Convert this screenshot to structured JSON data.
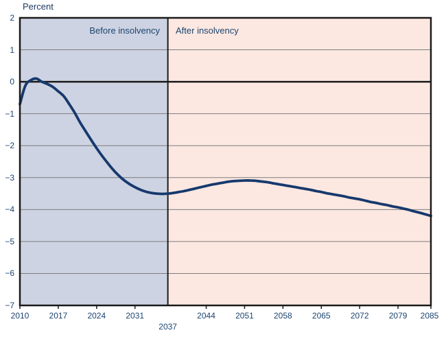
{
  "chart_data": {
    "type": "line",
    "title": "",
    "ylabel": "Percent",
    "xlabel": "",
    "xlim": [
      2010,
      2085
    ],
    "ylim": [
      -7,
      2
    ],
    "grid": true,
    "grid_color": "#7d7d7d",
    "axis_color": "#1a1a1a",
    "text_color": "#1b4470",
    "regions": [
      {
        "label": "Before insolvency",
        "from": 2010,
        "to": 2037,
        "color": "#cdd3e2"
      },
      {
        "label": "After insolvency",
        "from": 2037,
        "to": 2085,
        "color": "#fce8e1"
      }
    ],
    "divider": {
      "year": 2037,
      "label": "2037"
    },
    "x_ticks": [
      {
        "label": "2010",
        "year": 2010
      },
      {
        "label": "2017",
        "year": 2017
      },
      {
        "label": "2024",
        "year": 2024
      },
      {
        "label": "2031",
        "year": 2031
      },
      {
        "label": "2044",
        "year": 2044
      },
      {
        "label": "2051",
        "year": 2051
      },
      {
        "label": "2058",
        "year": 2058
      },
      {
        "label": "2065",
        "year": 2065
      },
      {
        "label": "2072",
        "year": 2072
      },
      {
        "label": "2079",
        "year": 2079
      },
      {
        "label": "2085",
        "year": 2085
      }
    ],
    "y_ticks": [
      {
        "label": "2",
        "value": 2
      },
      {
        "label": "1",
        "value": 1
      },
      {
        "label": "0",
        "value": 0
      },
      {
        "label": "−1",
        "value": -1
      },
      {
        "label": "−2",
        "value": -2
      },
      {
        "label": "−3",
        "value": -3
      },
      {
        "label": "−4",
        "value": -4
      },
      {
        "label": "−5",
        "value": -5
      },
      {
        "label": "−6",
        "value": -6
      },
      {
        "label": "−7",
        "value": -7
      }
    ],
    "series": [
      {
        "color": "#16396d",
        "x_start": 2010,
        "x_step": 1,
        "values": [
          -0.7,
          -0.12,
          0.05,
          0.1,
          0.0,
          -0.07,
          -0.16,
          -0.3,
          -0.45,
          -0.7,
          -0.97,
          -1.28,
          -1.55,
          -1.82,
          -2.08,
          -2.32,
          -2.54,
          -2.75,
          -2.93,
          -3.08,
          -3.2,
          -3.3,
          -3.38,
          -3.44,
          -3.48,
          -3.5,
          -3.51,
          -3.5,
          -3.48,
          -3.45,
          -3.42,
          -3.38,
          -3.34,
          -3.3,
          -3.26,
          -3.22,
          -3.19,
          -3.16,
          -3.13,
          -3.11,
          -3.1,
          -3.09,
          -3.09,
          -3.1,
          -3.12,
          -3.14,
          -3.17,
          -3.2,
          -3.23,
          -3.26,
          -3.29,
          -3.32,
          -3.35,
          -3.38,
          -3.42,
          -3.45,
          -3.49,
          -3.52,
          -3.55,
          -3.58,
          -3.62,
          -3.65,
          -3.68,
          -3.72,
          -3.76,
          -3.79,
          -3.83,
          -3.86,
          -3.9,
          -3.93,
          -3.97,
          -4.01,
          -4.06,
          -4.1,
          -4.15,
          -4.2
        ]
      }
    ]
  }
}
